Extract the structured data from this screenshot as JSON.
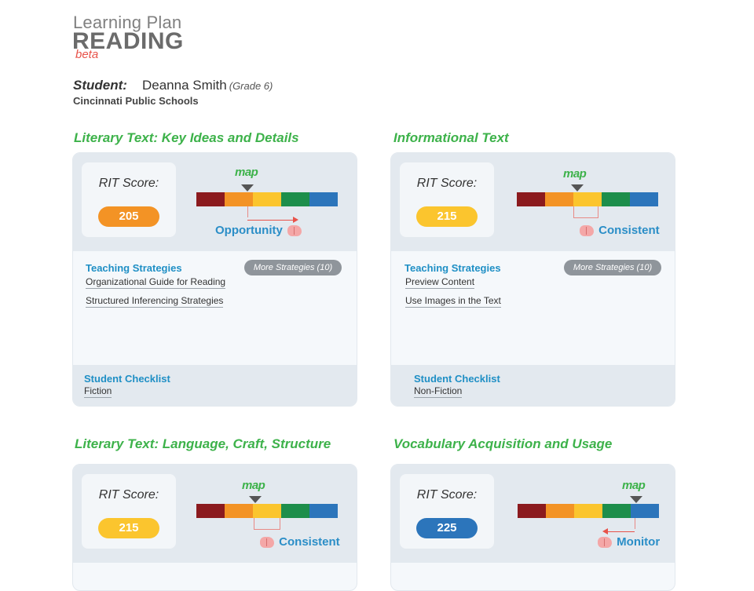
{
  "header": {
    "line1": "Learning Plan",
    "line2": "READING",
    "beta": "beta"
  },
  "student": {
    "label": "Student:",
    "name": "Deanna Smith",
    "grade": "(Grade 6)",
    "school": "Cincinnati Public Schools"
  },
  "colors": {
    "accent_green": "#3db24a",
    "link_blue": "#1f8fc5",
    "status_blue": "#2b8ec7",
    "beta_red": "#e8534a",
    "orange": "#f39325",
    "yellow": "#fbc52e",
    "blue": "#2c75bb"
  },
  "cards": [
    {
      "title": "Literary Text: Key Ideas and Details",
      "rit_label": "RIT Score:",
      "rit_value": "205",
      "rit_color": "orange",
      "map_logo": "map",
      "status": "Opportunity",
      "status_icon": "brain-icon",
      "strategies_title": "Teaching Strategies",
      "more_label": "More Strategies (10)",
      "strategies": [
        "Organizational Guide for Reading",
        "Structured Inferencing Strategies"
      ],
      "checklist_title": "Student Checklist",
      "checklist_item": "Fiction"
    },
    {
      "title": "Informational Text",
      "rit_label": "RIT Score:",
      "rit_value": "215",
      "rit_color": "yellow",
      "map_logo": "map",
      "status": "Consistent",
      "status_icon": "brain-icon",
      "strategies_title": "Teaching Strategies",
      "more_label": "More Strategies (10)",
      "strategies": [
        "Preview Content",
        "Use Images in the Text"
      ],
      "checklist_title": "Student Checklist",
      "checklist_item": "Non-Fiction"
    },
    {
      "title": "Literary Text: Language, Craft, Structure",
      "rit_label": "RIT Score:",
      "rit_value": "215",
      "rit_color": "yellow",
      "map_logo": "map",
      "status": "Consistent",
      "status_icon": "brain-icon"
    },
    {
      "title": "Vocabulary Acquisition and Usage",
      "rit_label": "RIT Score:",
      "rit_value": "225",
      "rit_color": "blue",
      "map_logo": "map",
      "status": "Monitor",
      "status_icon": "brain-icon"
    }
  ]
}
